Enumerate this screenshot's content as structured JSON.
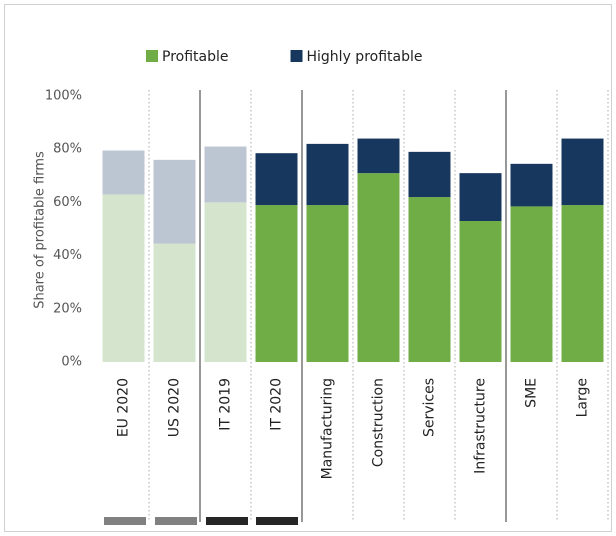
{
  "chart_data": {
    "type": "stacked_bar",
    "y_axis_label": "Share of profitable firms",
    "categories": [
      "EU 2020",
      "US 2020",
      "IT 2019",
      "IT 2020",
      "Manufacturing",
      "Construction",
      "Services",
      "Infrastructure",
      "SME",
      "Large"
    ],
    "series": [
      {
        "name": "Profitable",
        "color": "#70ad47",
        "colors": [
          "#d5e4cc",
          "#d5e4cc",
          "#d5e4cc",
          "#70ad47",
          "#70ad47",
          "#70ad47",
          "#70ad47",
          "#70ad47",
          "#70ad47",
          "#70ad47"
        ],
        "values": [
          63,
          44.5,
          60,
          59,
          59,
          71,
          62,
          53,
          58.5,
          59
        ]
      },
      {
        "name": "Highly profitable",
        "color": "#17375e",
        "colors": [
          "#bcc5d2",
          "#bcc5d2",
          "#bcc5d2",
          "#17375e",
          "#17375e",
          "#17375e",
          "#17375e",
          "#17375e",
          "#17375e",
          "#17375e"
        ],
        "values": [
          16.5,
          31.5,
          21,
          19.5,
          23,
          13,
          17,
          18,
          16,
          25
        ]
      }
    ],
    "ylim": [
      0,
      100
    ],
    "yticks": [
      {
        "value": 0,
        "label": "0%"
      },
      {
        "value": 20,
        "label": "20%"
      },
      {
        "value": 40,
        "label": "40%"
      },
      {
        "value": 60,
        "label": "60%"
      },
      {
        "value": 80,
        "label": "80%"
      },
      {
        "value": 100,
        "label": "100%"
      }
    ],
    "legend": "top"
  }
}
